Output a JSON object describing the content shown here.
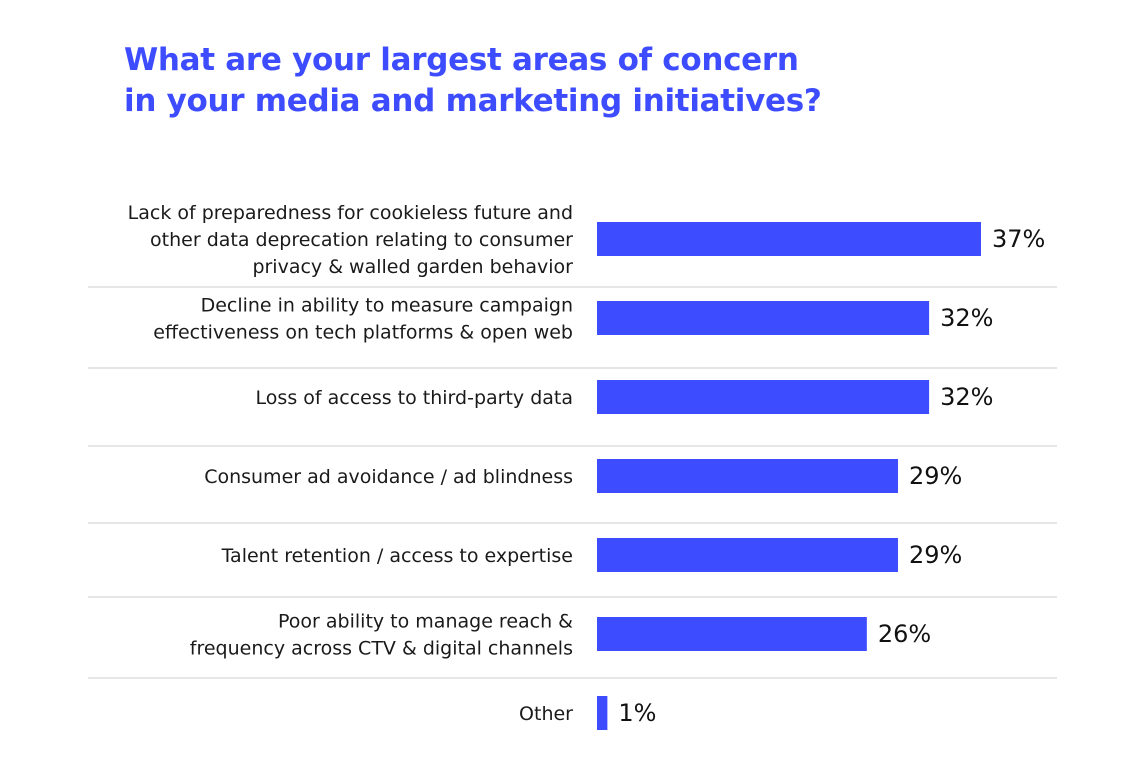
{
  "chart_data": {
    "type": "bar",
    "orientation": "horizontal",
    "title_lines": [
      "What are your largest areas of concern",
      "in your media and marketing initiatives?"
    ],
    "categories": [
      [
        "Lack of preparedness for cookieless future and",
        "other data deprecation relating to consumer",
        "privacy & walled garden behavior"
      ],
      [
        "Decline in ability to measure campaign",
        "effectiveness on tech platforms & open web"
      ],
      [
        "Loss of access to third-party data"
      ],
      [
        "Consumer ad avoidance / ad blindness"
      ],
      [
        "Talent retention / access to expertise"
      ],
      [
        "Poor ability to manage reach &",
        "frequency across CTV & digital channels"
      ],
      [
        "Other"
      ]
    ],
    "values": [
      37,
      32,
      32,
      29,
      29,
      26,
      1
    ],
    "value_labels": [
      "37%",
      "32%",
      "32%",
      "29%",
      "29%",
      "26%",
      "1%"
    ],
    "unit": "%",
    "xlim": [
      0,
      37
    ],
    "grid": false,
    "legend": "none",
    "colors": {
      "bar": "#3d4cff",
      "title": "#3d4cff",
      "separator": "#e6e6e6",
      "text": "#1a1a1a"
    }
  }
}
